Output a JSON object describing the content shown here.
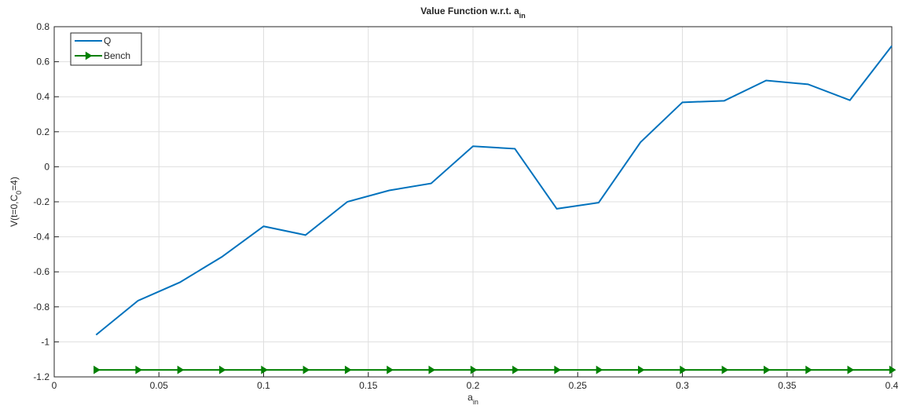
{
  "chart_data": {
    "type": "line",
    "title": [
      "Value Function w.r.t. a",
      "in"
    ],
    "xlabel": [
      "a",
      "in"
    ],
    "ylabel": [
      "V(t=0,C",
      "0",
      "=4)"
    ],
    "x": [
      0.02,
      0.04,
      0.06,
      0.08,
      0.1,
      0.12,
      0.14,
      0.16,
      0.18,
      0.2,
      0.22,
      0.24,
      0.26,
      0.28,
      0.3,
      0.32,
      0.34,
      0.36,
      0.38,
      0.4
    ],
    "series": [
      {
        "name": "Q",
        "color": "#0072bd",
        "marker": "none",
        "values": [
          -0.96,
          -0.765,
          -0.66,
          -0.515,
          -0.34,
          -0.39,
          -0.2,
          -0.135,
          -0.095,
          0.117,
          0.103,
          -0.24,
          -0.205,
          0.14,
          0.368,
          0.377,
          0.493,
          0.471,
          0.38,
          0.69
        ]
      },
      {
        "name": "Bench",
        "color": "#008000",
        "marker": "triangle-right",
        "values": [
          -1.16,
          -1.16,
          -1.16,
          -1.16,
          -1.16,
          -1.16,
          -1.16,
          -1.16,
          -1.16,
          -1.16,
          -1.16,
          -1.16,
          -1.16,
          -1.16,
          -1.16,
          -1.16,
          -1.16,
          -1.16,
          -1.16,
          -1.16
        ]
      }
    ],
    "xlim": [
      0,
      0.4
    ],
    "xticks": [
      0,
      0.05,
      0.1,
      0.15,
      0.2,
      0.25,
      0.3,
      0.35,
      0.4
    ],
    "ylim": [
      -1.2,
      0.8
    ],
    "yticks": [
      -1.2,
      -1,
      -0.8,
      -0.6,
      -0.4,
      -0.2,
      0,
      0.2,
      0.4,
      0.6,
      0.8
    ],
    "grid": true,
    "legend": "top-left"
  }
}
